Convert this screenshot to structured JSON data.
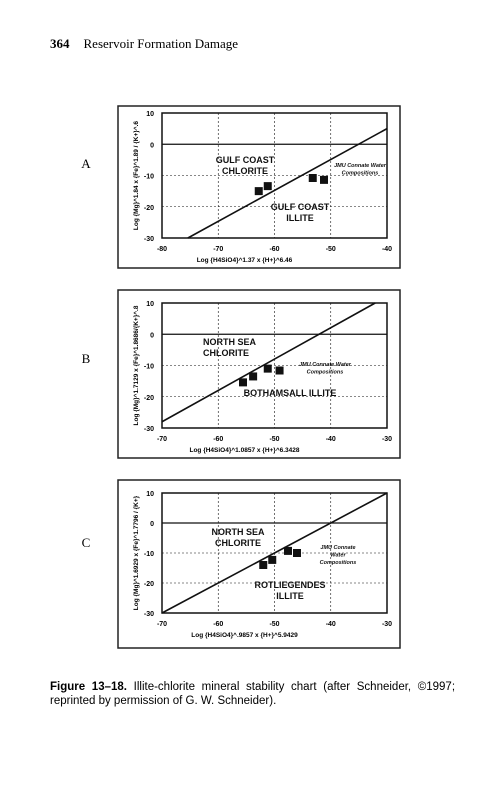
{
  "header": {
    "page_number": "364",
    "title": "Reservoir Formation Damage"
  },
  "chart_data": [
    {
      "type": "scatter",
      "panel": "A",
      "xlabel": "Log {H4SiO4}^1.37 x {H+}^6.46",
      "ylabel": "Log {Mg}^1.84 x {Fe}^1.89 / {K+}^.6",
      "annotations": [
        [
          "GULF COAST",
          "CHLORITE"
        ],
        [
          "GULF COAST",
          "ILLITE"
        ],
        [
          "JMU Connate Water",
          "Compositions"
        ]
      ],
      "x": [
        -62.8,
        -61.2,
        -53.2,
        -51.2
      ],
      "values": [
        -15,
        -13.4,
        -10.8,
        -11.4
      ],
      "color": "#111111",
      "line": {
        "x": [
          -75.4,
          -40
        ],
        "values": [
          -30,
          5
        ]
      },
      "xlim": [
        -80,
        -40
      ],
      "xticks": [
        -80,
        -70,
        -60,
        -50,
        -40
      ],
      "ylim": [
        -30,
        10
      ],
      "yticks": [
        10,
        0,
        -10,
        -20,
        -30
      ],
      "grid": true
    },
    {
      "type": "scatter",
      "panel": "B",
      "xlabel": "Log {H4SiO4}^1.0857 x {H+}^6.3428",
      "ylabel": "Log {Mg}^1.7129 x {Fe}^1.8686/{K+}^.8",
      "annotations": [
        [
          "NORTH SEA",
          "CHLORITE"
        ],
        [
          "BOTHAMSALL ILLITE"
        ],
        [
          "JMU Connate Water",
          "Compositions"
        ]
      ],
      "x": [
        -55.6,
        -53.8,
        -51.2,
        -49.1
      ],
      "values": [
        -15.4,
        -13.5,
        -11,
        -11.6
      ],
      "color": "#111111",
      "line": {
        "x": [
          -70,
          -32.1
        ],
        "values": [
          -28,
          10
        ]
      },
      "xlim": [
        -70,
        -30
      ],
      "xticks": [
        -70,
        -60,
        -50,
        -40,
        -30
      ],
      "ylim": [
        -30,
        10
      ],
      "yticks": [
        10,
        0,
        -10,
        -20,
        -30
      ],
      "grid": true
    },
    {
      "type": "scatter",
      "panel": "C",
      "xlabel": "Log {H4SiO4}^.9857 x {H+}^5.9429",
      "ylabel": "Log {Mg}^1.6929 x {Fe}^1.7796 / {K+}",
      "annotations": [
        [
          "NORTH SEA",
          "CHLORITE"
        ],
        [
          "ROTLIEGENDES",
          "ILLITE"
        ],
        [
          "JMU Connate",
          "Water",
          "Compositions"
        ]
      ],
      "x": [
        -52,
        -50.4,
        -47.6,
        -46
      ],
      "values": [
        -14,
        -12.3,
        -9.3,
        -10
      ],
      "color": "#111111",
      "line": {
        "x": [
          -70,
          -30
        ],
        "values": [
          -30,
          10
        ]
      },
      "xlim": [
        -70,
        -30
      ],
      "xticks": [
        -70,
        -60,
        -50,
        -40,
        -30
      ],
      "ylim": [
        -30,
        10
      ],
      "yticks": [
        10,
        0,
        -10,
        -20,
        -30
      ],
      "grid": true
    }
  ],
  "caption": {
    "label": "Figure 13–18.",
    "text": "Illite-chlorite mineral stability chart (after Schneider, ©1997; reprinted by permission of G. W. Schneider)."
  }
}
